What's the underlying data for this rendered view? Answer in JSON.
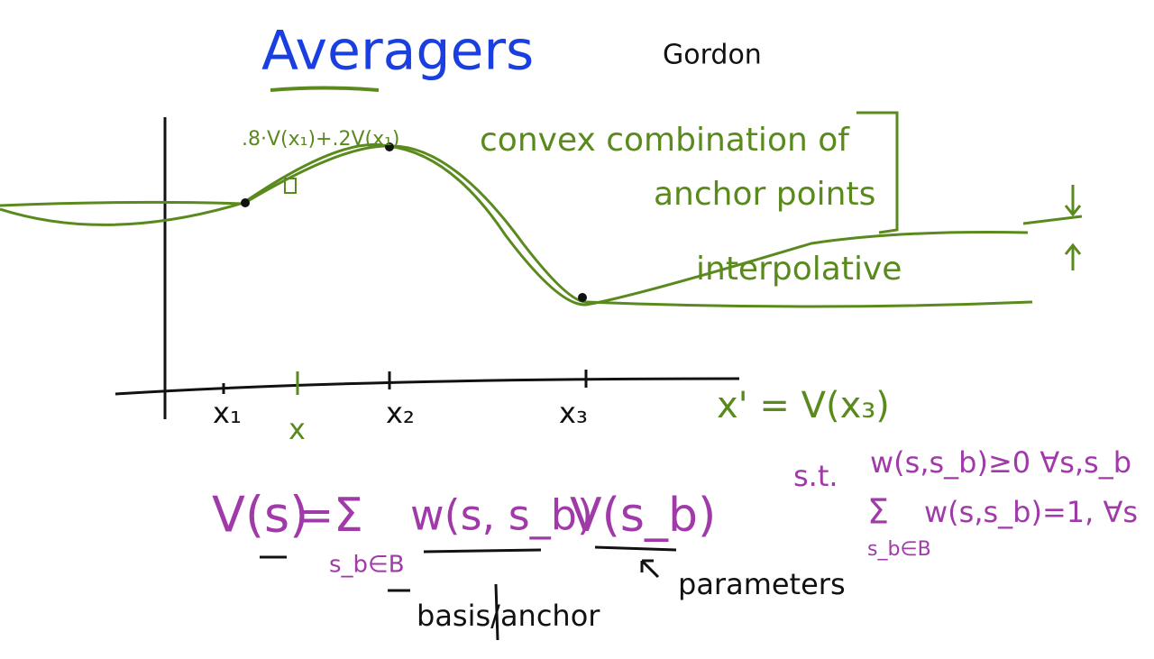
{
  "header": {
    "title": "Averagers",
    "author": "Gordon"
  },
  "annotations": {
    "weighted_point": ".8·V(x₁)+.2V(x₁)",
    "convex_line1": "convex combination of",
    "convex_line2": "anchor points",
    "interpolative": "interpolative"
  },
  "axis": {
    "labels": [
      "x₁",
      "x",
      "x₂",
      "x₃"
    ],
    "mapping": "x' = V(x₃)"
  },
  "equation": {
    "lhs": "V(s)",
    "equals": "=",
    "sum": "Σ",
    "sum_index": "s_b∈B",
    "weight": "w(s, s_b)",
    "value": "V(s_b)",
    "basis_note": "basis/anchor",
    "parameters_note": "parameters"
  },
  "constraints": {
    "st": "s.t.",
    "nonneg": "w(s,s_b)≥0 ∀s,s_b",
    "sum": "Σ",
    "sum_index": "s_b∈B",
    "normalize": "w(s,s_b)=1, ∀s"
  }
}
